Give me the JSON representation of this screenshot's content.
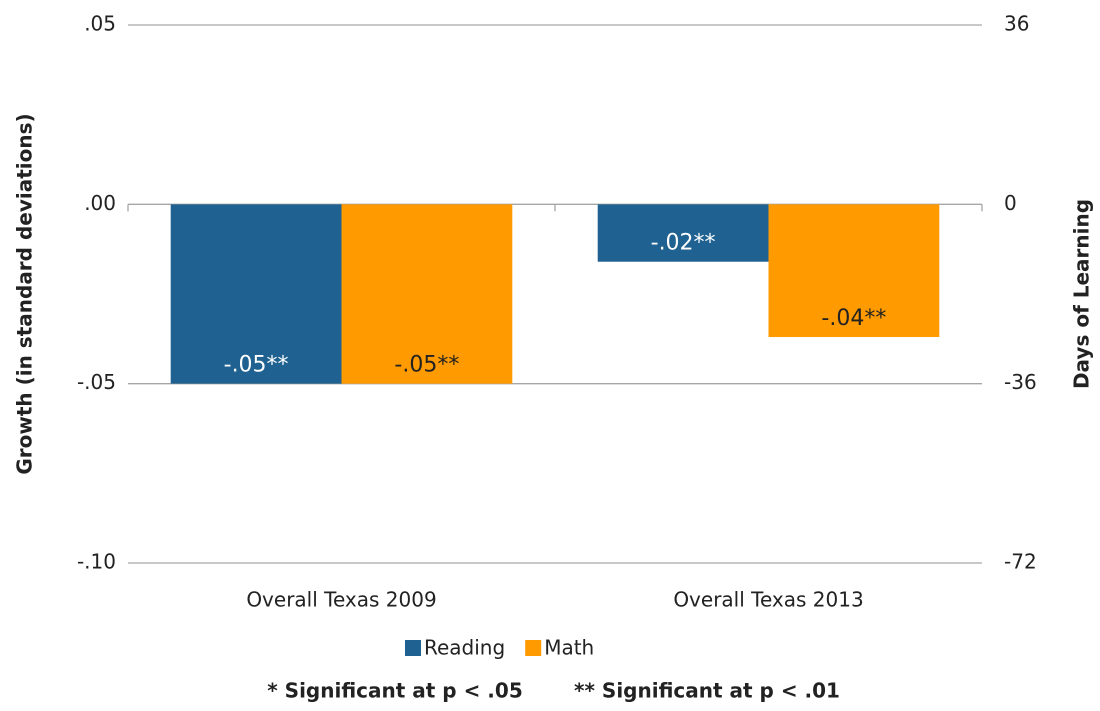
{
  "chart_data": {
    "type": "bar",
    "y_label": "Growth (in standard deviations)",
    "y2_label": "Days of Learning",
    "categories": [
      "Overall Texas 2009",
      "Overall Texas 2013"
    ],
    "series": [
      {
        "name": "Reading",
        "color": "#1f6190",
        "label_color": "#ffffff",
        "values": [
          -0.05,
          -0.016
        ],
        "value_labels": [
          "-.05**",
          "-.02**"
        ]
      },
      {
        "name": "Math",
        "color": "#ff9a00",
        "label_color": "#222222",
        "values": [
          -0.05,
          -0.037
        ],
        "value_labels": [
          "-.05**",
          "-.04**"
        ]
      }
    ],
    "ylim": [
      -0.1,
      0.05
    ],
    "yticks": [
      {
        "value": 0.05,
        "label": ".05"
      },
      {
        "value": 0,
        "label": ".00"
      },
      {
        "value": -0.05,
        "label": "-.05"
      },
      {
        "value": -0.1,
        "label": "-.10"
      }
    ],
    "y2lim": [
      -72,
      36
    ],
    "y2ticks": [
      36,
      0,
      -36,
      -72
    ],
    "grid": true,
    "legend": "bottom",
    "notes": [
      "* Significant at p < .05",
      "** Significant at p < .01"
    ]
  }
}
